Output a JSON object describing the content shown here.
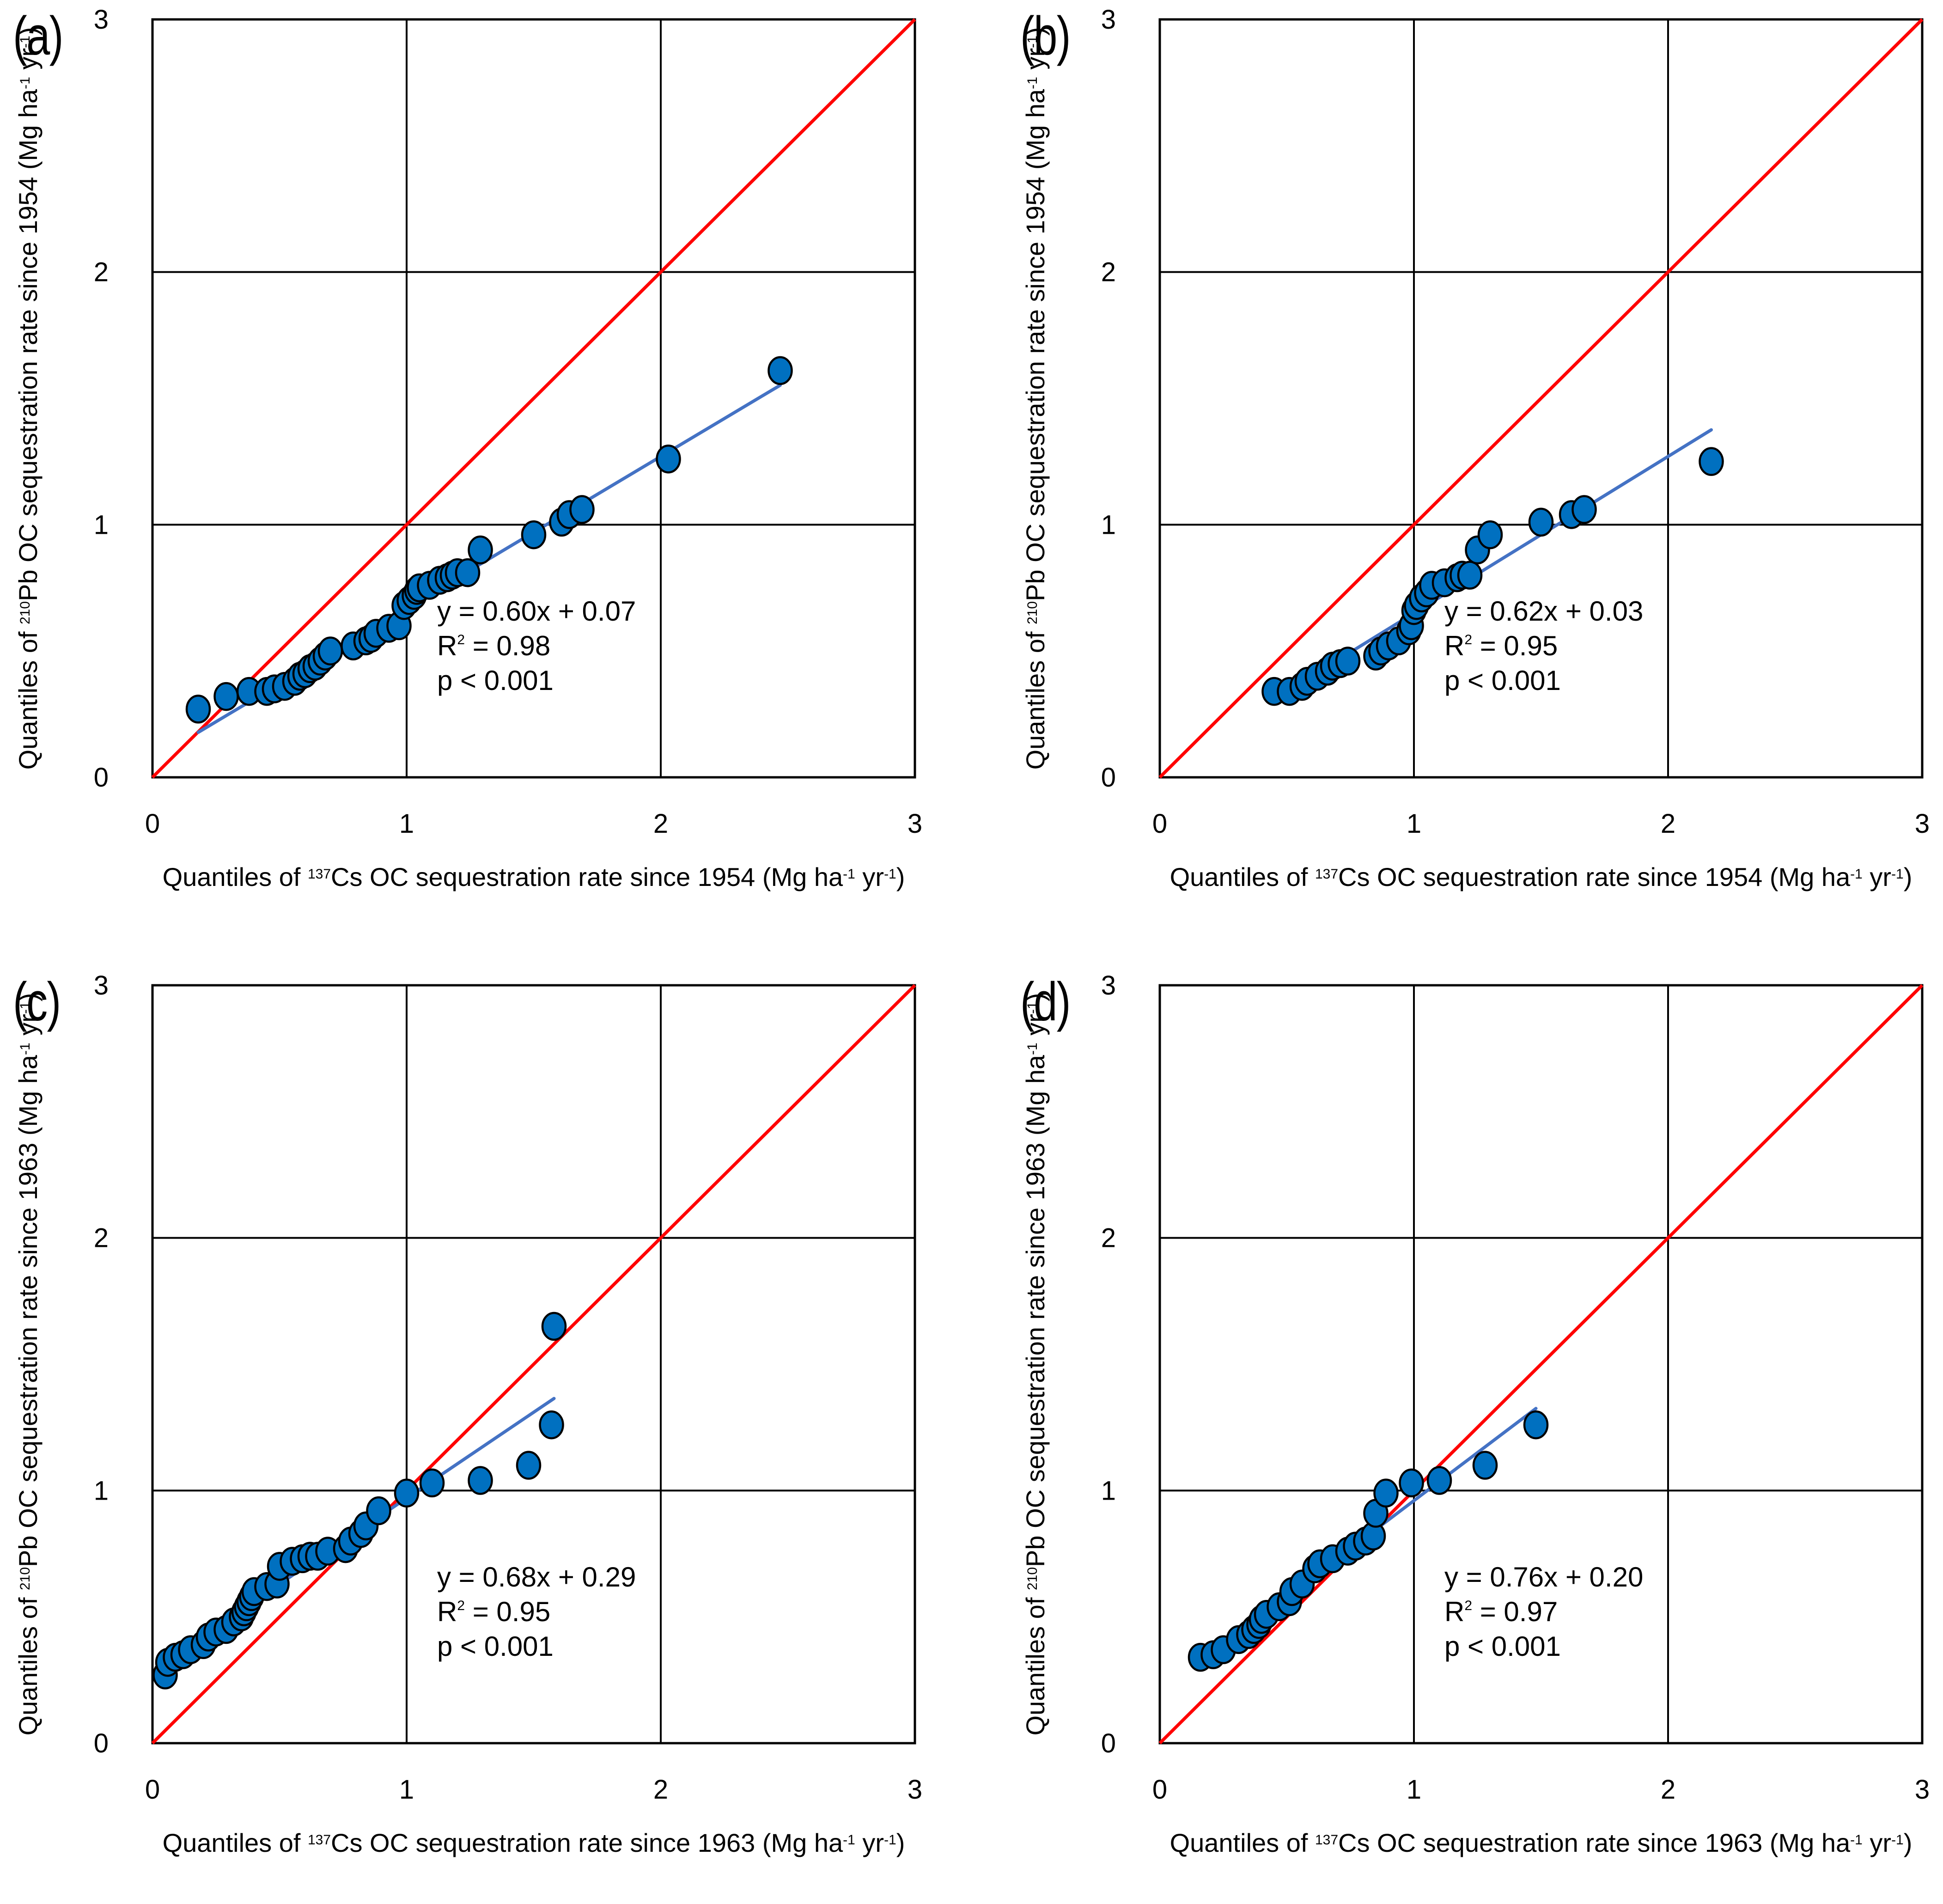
{
  "chart_data": [
    {
      "type": "scatter",
      "panel_label": "(a)",
      "xlabel": {
        "pre": "Quantiles of ",
        "sup": "137",
        "mid": "Cs OC sequestration rate since 1954 (Mg ha",
        "sup2": "-1",
        "mid2": " yr",
        "sup3": "-1",
        "post": ")"
      },
      "ylabel": {
        "pre": "Quantiles of ",
        "sup": "210",
        "mid": "Pb OC sequestration rate since 1954 (Mg ha",
        "sup2": "-1",
        "mid2": " yr",
        "sup3": "-1",
        "post": ")"
      },
      "xlim": [
        0,
        3
      ],
      "ylim": [
        0,
        3
      ],
      "xticks": [
        "0",
        "1",
        "2",
        "3"
      ],
      "yticks": [
        "0",
        "1",
        "2",
        "3"
      ],
      "grid": true,
      "series": [
        {
          "name": "quantiles",
          "x": [
            0.18,
            0.29,
            0.38,
            0.45,
            0.48,
            0.52,
            0.56,
            0.58,
            0.6,
            0.62,
            0.64,
            0.66,
            0.68,
            0.7,
            0.79,
            0.84,
            0.86,
            0.88,
            0.93,
            0.97,
            0.99,
            1.01,
            1.03,
            1.04,
            1.05,
            1.09,
            1.13,
            1.16,
            1.18,
            1.2,
            1.24,
            1.29,
            1.5,
            1.61,
            1.64,
            1.69,
            2.03,
            2.47
          ],
          "y": [
            0.27,
            0.32,
            0.34,
            0.34,
            0.35,
            0.36,
            0.38,
            0.4,
            0.41,
            0.43,
            0.44,
            0.46,
            0.48,
            0.5,
            0.52,
            0.54,
            0.55,
            0.57,
            0.59,
            0.6,
            0.68,
            0.7,
            0.72,
            0.74,
            0.75,
            0.76,
            0.78,
            0.79,
            0.8,
            0.81,
            0.81,
            0.9,
            0.96,
            1.01,
            1.04,
            1.06,
            1.26,
            1.61
          ]
        }
      ],
      "fit": {
        "slope": 0.6,
        "intercept": 0.07,
        "x_range": [
          0.18,
          2.47
        ]
      },
      "reference_line": {
        "slope": 1,
        "intercept": 0
      },
      "annotation": {
        "line1": "y = 0.60x + 0.07",
        "r2_label": "R",
        "r2_sup": "2",
        "r2_value": " = 0.98",
        "line3": "p < 0.001"
      }
    },
    {
      "type": "scatter",
      "panel_label": "(b)",
      "xlabel": {
        "pre": "Quantiles of ",
        "sup": "137",
        "mid": "Cs OC sequestration rate since 1954 (Mg ha",
        "sup2": "-1",
        "mid2": " yr",
        "sup3": "-1",
        "post": ")"
      },
      "ylabel": {
        "pre": "Quantiles of ",
        "sup": "210",
        "mid": "Pb OC sequestration rate since 1954 (Mg ha",
        "sup2": "-1",
        "mid2": " yr",
        "sup3": "-1",
        "post": ")"
      },
      "xlim": [
        0,
        3
      ],
      "ylim": [
        0,
        3
      ],
      "xticks": [
        "0",
        "1",
        "2",
        "3"
      ],
      "yticks": [
        "0",
        "1",
        "2",
        "3"
      ],
      "grid": true,
      "series": [
        {
          "name": "quantiles",
          "x": [
            0.45,
            0.51,
            0.56,
            0.58,
            0.62,
            0.66,
            0.68,
            0.71,
            0.74,
            0.85,
            0.87,
            0.9,
            0.94,
            0.98,
            0.99,
            1.0,
            1.01,
            1.03,
            1.05,
            1.07,
            1.12,
            1.17,
            1.19,
            1.22,
            1.25,
            1.3,
            1.5,
            1.62,
            1.67,
            2.17
          ],
          "y": [
            0.34,
            0.34,
            0.36,
            0.38,
            0.4,
            0.42,
            0.44,
            0.45,
            0.46,
            0.48,
            0.5,
            0.52,
            0.54,
            0.58,
            0.6,
            0.66,
            0.68,
            0.71,
            0.73,
            0.76,
            0.77,
            0.79,
            0.8,
            0.8,
            0.9,
            0.96,
            1.01,
            1.04,
            1.06,
            1.25
          ]
        }
      ],
      "fit": {
        "slope": 0.62,
        "intercept": 0.03,
        "x_range": [
          0.45,
          2.17
        ]
      },
      "reference_line": {
        "slope": 1,
        "intercept": 0
      },
      "annotation": {
        "line1": "y = 0.62x + 0.03",
        "r2_label": "R",
        "r2_sup": "2",
        "r2_value": " = 0.95",
        "line3": "p < 0.001"
      }
    },
    {
      "type": "scatter",
      "panel_label": "(c)",
      "xlabel": {
        "pre": "Quantiles of ",
        "sup": "137",
        "mid": "Cs OC sequestration rate since 1963 (Mg ha",
        "sup2": "-1",
        "mid2": " yr",
        "sup3": "-1",
        "post": ")"
      },
      "ylabel": {
        "pre": "Quantiles of ",
        "sup": "210",
        "mid": "Pb OC sequestration rate since 1963 (Mg ha",
        "sup2": "-1",
        "mid2": " yr",
        "sup3": "-1",
        "post": ")"
      },
      "xlim": [
        0,
        3
      ],
      "ylim": [
        0,
        3
      ],
      "xticks": [
        "0",
        "1",
        "2",
        "3"
      ],
      "yticks": [
        "0",
        "1",
        "2",
        "3"
      ],
      "grid": true,
      "series": [
        {
          "name": "quantiles",
          "x": [
            0.05,
            0.06,
            0.09,
            0.12,
            0.15,
            0.2,
            0.22,
            0.25,
            0.29,
            0.32,
            0.35,
            0.36,
            0.37,
            0.38,
            0.39,
            0.4,
            0.45,
            0.49,
            0.5,
            0.55,
            0.59,
            0.62,
            0.65,
            0.69,
            0.76,
            0.78,
            0.82,
            0.84,
            0.89,
            1.0,
            1.1,
            1.29,
            1.48,
            1.57,
            1.58
          ],
          "y": [
            0.27,
            0.32,
            0.34,
            0.35,
            0.37,
            0.39,
            0.42,
            0.44,
            0.45,
            0.48,
            0.5,
            0.52,
            0.54,
            0.56,
            0.58,
            0.6,
            0.62,
            0.63,
            0.7,
            0.72,
            0.73,
            0.74,
            0.74,
            0.76,
            0.77,
            0.8,
            0.83,
            0.86,
            0.92,
            0.99,
            1.03,
            1.04,
            1.1,
            1.26,
            1.65
          ]
        }
      ],
      "fit": {
        "slope": 0.68,
        "intercept": 0.29,
        "x_range": [
          0.05,
          1.58
        ]
      },
      "reference_line": {
        "slope": 1,
        "intercept": 0
      },
      "annotation": {
        "line1": "y = 0.68x + 0.29",
        "r2_label": "R",
        "r2_sup": "2",
        "r2_value": " = 0.95",
        "line3": "p < 0.001"
      }
    },
    {
      "type": "scatter",
      "panel_label": "(d)",
      "xlabel": {
        "pre": "Quantiles of ",
        "sup": "137",
        "mid": "Cs OC sequestration rate since 1963 (Mg ha",
        "sup2": "-1",
        "mid2": " yr",
        "sup3": "-1",
        "post": ")"
      },
      "ylabel": {
        "pre": "Quantiles of ",
        "sup": "210",
        "mid": "Pb OC sequestration rate since 1963 (Mg ha",
        "sup2": "-1",
        "mid2": " yr",
        "sup3": "-1",
        "post": ")"
      },
      "xlim": [
        0,
        3
      ],
      "ylim": [
        0,
        3
      ],
      "xticks": [
        "0",
        "1",
        "2",
        "3"
      ],
      "yticks": [
        "0",
        "1",
        "2",
        "3"
      ],
      "grid": true,
      "series": [
        {
          "name": "quantiles",
          "x": [
            0.16,
            0.21,
            0.25,
            0.31,
            0.35,
            0.37,
            0.39,
            0.4,
            0.42,
            0.47,
            0.51,
            0.52,
            0.56,
            0.61,
            0.63,
            0.68,
            0.74,
            0.77,
            0.81,
            0.84,
            0.85,
            0.89,
            0.99,
            1.1,
            1.28,
            1.48
          ],
          "y": [
            0.34,
            0.35,
            0.37,
            0.41,
            0.43,
            0.45,
            0.47,
            0.49,
            0.51,
            0.54,
            0.56,
            0.6,
            0.63,
            0.69,
            0.71,
            0.73,
            0.76,
            0.78,
            0.8,
            0.82,
            0.91,
            0.99,
            1.03,
            1.04,
            1.1,
            1.26
          ]
        }
      ],
      "fit": {
        "slope": 0.76,
        "intercept": 0.2,
        "x_range": [
          0.84,
          1.48
        ]
      },
      "reference_line": {
        "slope": 1,
        "intercept": 0
      },
      "annotation": {
        "line1": "y = 0.76x + 0.20",
        "r2_label": "R",
        "r2_sup": "2",
        "r2_value": " = 0.97",
        "line3": "p < 0.001"
      }
    }
  ],
  "colors": {
    "marker_fill": "#0070C0",
    "marker_stroke": "#000000",
    "fit_line": "#4472C4",
    "reference_line": "#FF0000",
    "grid": "#000000"
  }
}
